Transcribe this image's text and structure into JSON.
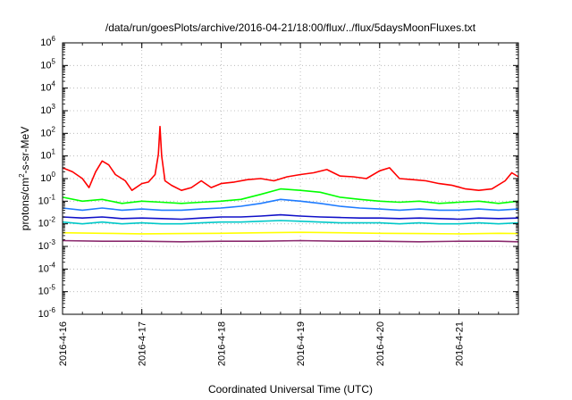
{
  "chart_data": {
    "type": "line",
    "title": "/data/run/goesPlots/archive/2016-04-21/18:00/flux/../flux/5daysMoonFluxes.txt",
    "xlabel": "Coordinated Universal Time (UTC)",
    "ylabel": {
      "base": "protons/cm",
      "sup": "2",
      "rest": "-s-sr-MeV"
    },
    "y_scale": "log",
    "ylim": [
      1e-06,
      1000000.0
    ],
    "y_ticks": [
      {
        "base": "10",
        "exp": "-6"
      },
      {
        "base": "10",
        "exp": "-5"
      },
      {
        "base": "10",
        "exp": "-4"
      },
      {
        "base": "10",
        "exp": "-3"
      },
      {
        "base": "10",
        "exp": "-2"
      },
      {
        "base": "10",
        "exp": "-1"
      },
      {
        "base": "10",
        "exp": "0"
      },
      {
        "base": "10",
        "exp": "1"
      },
      {
        "base": "10",
        "exp": "2"
      },
      {
        "base": "10",
        "exp": "3"
      },
      {
        "base": "10",
        "exp": "4"
      },
      {
        "base": "10",
        "exp": "5"
      },
      {
        "base": "10",
        "exp": "6"
      }
    ],
    "xlim": [
      "2016-04-16 00:00",
      "2016-04-21 18:00"
    ],
    "x_ticks": [
      "2016-4-16",
      "2016-4-17",
      "2016-4-18",
      "2016-4-19",
      "2016-4-20",
      "2016-4-21"
    ],
    "grid": true,
    "legend": "none",
    "series": [
      {
        "color": "#ff0000",
        "x": [
          "2016-04-16 00:00",
          "2016-04-16 03:00",
          "2016-04-16 06:00",
          "2016-04-16 08:00",
          "2016-04-16 10:00",
          "2016-04-16 12:00",
          "2016-04-16 14:00",
          "2016-04-16 16:00",
          "2016-04-16 19:00",
          "2016-04-16 21:00",
          "2016-04-17 00:00",
          "2016-04-17 02:00",
          "2016-04-17 04:00",
          "2016-04-17 05:00",
          "2016-04-17 05:30",
          "2016-04-17 06:00",
          "2016-04-17 07:00",
          "2016-04-17 09:00",
          "2016-04-17 12:00",
          "2016-04-17 15:00",
          "2016-04-17 18:00",
          "2016-04-17 21:00",
          "2016-04-18 00:00",
          "2016-04-18 04:00",
          "2016-04-18 08:00",
          "2016-04-18 12:00",
          "2016-04-18 16:00",
          "2016-04-18 20:00",
          "2016-04-19 00:00",
          "2016-04-19 04:00",
          "2016-04-19 08:00",
          "2016-04-19 12:00",
          "2016-04-19 16:00",
          "2016-04-19 20:00",
          "2016-04-20 00:00",
          "2016-04-20 03:00",
          "2016-04-20 06:00",
          "2016-04-20 10:00",
          "2016-04-20 14:00",
          "2016-04-20 18:00",
          "2016-04-20 22:00",
          "2016-04-21 02:00",
          "2016-04-21 06:00",
          "2016-04-21 10:00",
          "2016-04-21 14:00",
          "2016-04-21 16:00",
          "2016-04-21 18:00"
        ],
        "y": [
          3,
          2,
          1,
          0.4,
          2,
          6,
          4,
          1.5,
          0.8,
          0.3,
          0.6,
          0.7,
          1.5,
          12,
          200,
          10,
          0.8,
          0.5,
          0.3,
          0.4,
          0.8,
          0.4,
          0.6,
          0.7,
          0.9,
          1.0,
          0.8,
          1.2,
          1.5,
          1.8,
          2.5,
          1.3,
          1.2,
          1.0,
          2.2,
          3.0,
          1.0,
          0.9,
          0.8,
          0.6,
          0.5,
          0.35,
          0.3,
          0.35,
          0.8,
          1.8,
          1.2
        ]
      },
      {
        "color": "#00ff00",
        "x": [
          "2016-04-16 00:00",
          "2016-04-16 06:00",
          "2016-04-16 12:00",
          "2016-04-16 18:00",
          "2016-04-17 00:00",
          "2016-04-17 06:00",
          "2016-04-17 12:00",
          "2016-04-17 18:00",
          "2016-04-18 00:00",
          "2016-04-18 06:00",
          "2016-04-18 12:00",
          "2016-04-18 18:00",
          "2016-04-19 00:00",
          "2016-04-19 06:00",
          "2016-04-19 12:00",
          "2016-04-19 18:00",
          "2016-04-20 00:00",
          "2016-04-20 06:00",
          "2016-04-20 12:00",
          "2016-04-20 18:00",
          "2016-04-21 00:00",
          "2016-04-21 06:00",
          "2016-04-21 12:00",
          "2016-04-21 18:00"
        ],
        "y": [
          0.15,
          0.1,
          0.12,
          0.08,
          0.1,
          0.09,
          0.08,
          0.09,
          0.1,
          0.12,
          0.2,
          0.35,
          0.3,
          0.25,
          0.15,
          0.12,
          0.1,
          0.09,
          0.1,
          0.08,
          0.09,
          0.1,
          0.08,
          0.1
        ]
      },
      {
        "color": "#1e7bff",
        "x": [
          "2016-04-16 00:00",
          "2016-04-16 06:00",
          "2016-04-16 12:00",
          "2016-04-16 18:00",
          "2016-04-17 00:00",
          "2016-04-17 06:00",
          "2016-04-17 12:00",
          "2016-04-17 18:00",
          "2016-04-18 00:00",
          "2016-04-18 06:00",
          "2016-04-18 12:00",
          "2016-04-18 18:00",
          "2016-04-19 00:00",
          "2016-04-19 06:00",
          "2016-04-19 12:00",
          "2016-04-19 18:00",
          "2016-04-20 00:00",
          "2016-04-20 06:00",
          "2016-04-20 12:00",
          "2016-04-20 18:00",
          "2016-04-21 00:00",
          "2016-04-21 06:00",
          "2016-04-21 12:00",
          "2016-04-21 18:00"
        ],
        "y": [
          0.05,
          0.04,
          0.05,
          0.04,
          0.045,
          0.04,
          0.04,
          0.045,
          0.05,
          0.06,
          0.08,
          0.12,
          0.1,
          0.08,
          0.06,
          0.05,
          0.045,
          0.04,
          0.045,
          0.04,
          0.04,
          0.045,
          0.04,
          0.045
        ]
      },
      {
        "color": "#1010c8",
        "x": [
          "2016-04-16 00:00",
          "2016-04-16 06:00",
          "2016-04-16 12:00",
          "2016-04-16 18:00",
          "2016-04-17 00:00",
          "2016-04-17 06:00",
          "2016-04-17 12:00",
          "2016-04-17 18:00",
          "2016-04-18 00:00",
          "2016-04-18 06:00",
          "2016-04-18 12:00",
          "2016-04-18 18:00",
          "2016-04-19 00:00",
          "2016-04-19 06:00",
          "2016-04-19 12:00",
          "2016-04-19 18:00",
          "2016-04-20 00:00",
          "2016-04-20 06:00",
          "2016-04-20 12:00",
          "2016-04-20 18:00",
          "2016-04-21 00:00",
          "2016-04-21 06:00",
          "2016-04-21 12:00",
          "2016-04-21 18:00"
        ],
        "y": [
          0.02,
          0.018,
          0.02,
          0.017,
          0.018,
          0.017,
          0.016,
          0.018,
          0.02,
          0.02,
          0.022,
          0.025,
          0.022,
          0.02,
          0.019,
          0.018,
          0.018,
          0.017,
          0.018,
          0.017,
          0.016,
          0.018,
          0.017,
          0.018
        ]
      },
      {
        "color": "#00c8c8",
        "x": [
          "2016-04-16 00:00",
          "2016-04-16 06:00",
          "2016-04-16 12:00",
          "2016-04-16 18:00",
          "2016-04-17 00:00",
          "2016-04-17 06:00",
          "2016-04-17 12:00",
          "2016-04-17 18:00",
          "2016-04-18 00:00",
          "2016-04-18 06:00",
          "2016-04-18 12:00",
          "2016-04-18 18:00",
          "2016-04-19 00:00",
          "2016-04-19 06:00",
          "2016-04-19 12:00",
          "2016-04-19 18:00",
          "2016-04-20 00:00",
          "2016-04-20 06:00",
          "2016-04-20 12:00",
          "2016-04-20 18:00",
          "2016-04-21 00:00",
          "2016-04-21 06:00",
          "2016-04-21 12:00",
          "2016-04-21 18:00"
        ],
        "y": [
          0.012,
          0.01,
          0.012,
          0.01,
          0.011,
          0.01,
          0.01,
          0.011,
          0.012,
          0.012,
          0.013,
          0.014,
          0.013,
          0.012,
          0.011,
          0.011,
          0.011,
          0.01,
          0.011,
          0.01,
          0.01,
          0.011,
          0.01,
          0.011
        ]
      },
      {
        "color": "#ffff00",
        "x": [
          "2016-04-16 00:00",
          "2016-04-16 12:00",
          "2016-04-17 00:00",
          "2016-04-17 12:00",
          "2016-04-18 00:00",
          "2016-04-18 12:00",
          "2016-04-19 00:00",
          "2016-04-19 12:00",
          "2016-04-20 00:00",
          "2016-04-20 12:00",
          "2016-04-21 00:00",
          "2016-04-21 12:00",
          "2016-04-21 18:00"
        ],
        "y": [
          0.004,
          0.0038,
          0.0036,
          0.0037,
          0.0038,
          0.004,
          0.0042,
          0.004,
          0.0038,
          0.0037,
          0.0036,
          0.0038,
          0.0037
        ]
      },
      {
        "color": "#8b2a6e",
        "x": [
          "2016-04-16 00:00",
          "2016-04-16 12:00",
          "2016-04-17 00:00",
          "2016-04-17 12:00",
          "2016-04-18 00:00",
          "2016-04-18 12:00",
          "2016-04-19 00:00",
          "2016-04-19 12:00",
          "2016-04-20 00:00",
          "2016-04-20 12:00",
          "2016-04-21 00:00",
          "2016-04-21 12:00",
          "2016-04-21 18:00"
        ],
        "y": [
          0.0018,
          0.0017,
          0.0017,
          0.0016,
          0.0017,
          0.0017,
          0.0018,
          0.0017,
          0.0017,
          0.0016,
          0.0017,
          0.0017,
          0.0016
        ]
      }
    ]
  }
}
